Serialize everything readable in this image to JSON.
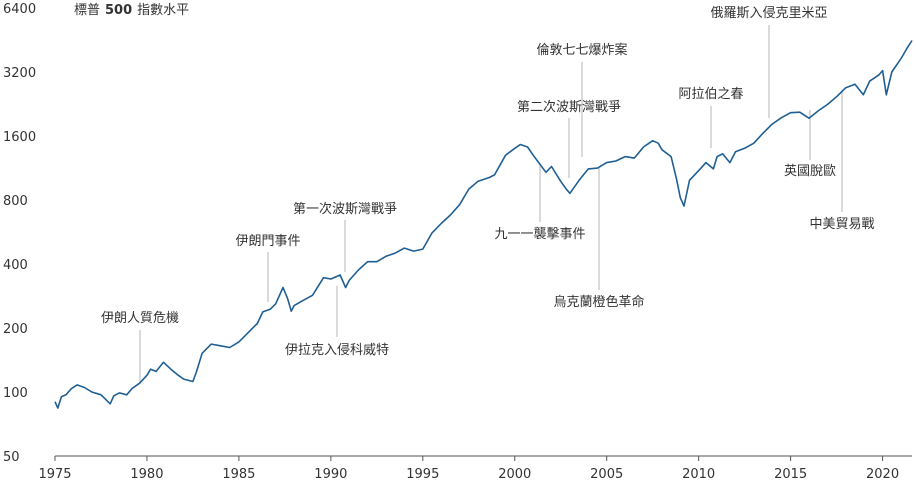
{
  "chart_data": {
    "type": "line",
    "title_prefix": "標普",
    "title_number": "500",
    "title_suffix": "指數水平",
    "y_scale": "log2",
    "ylim": [
      50,
      6400
    ],
    "y_ticks": [
      "6400",
      "3200",
      "1600",
      "800",
      "400",
      "200",
      "100",
      "50"
    ],
    "xlim": [
      1975,
      2021.6
    ],
    "x_ticks": [
      "1975",
      "1980",
      "1985",
      "1990",
      "1995",
      "2000",
      "2005",
      "2010",
      "2015",
      "2020"
    ],
    "grid": false,
    "line_color": "#1f5f94",
    "series": [
      {
        "x": [
          1975.0,
          1975.15,
          1975.35,
          1975.6,
          1975.9,
          1976.2,
          1976.6,
          1977.0,
          1977.5,
          1978.0,
          1978.2,
          1978.5,
          1978.9,
          1979.2,
          1979.6,
          1980.0,
          1980.2,
          1980.5,
          1980.9,
          1981.3,
          1981.7,
          1982.0,
          1982.5,
          1982.7,
          1983.0,
          1983.5,
          1984.0,
          1984.5,
          1985.0,
          1985.5,
          1986.0,
          1986.3,
          1986.7,
          1987.0,
          1987.4,
          1987.65,
          1987.85,
          1988.0,
          1988.5,
          1989.0,
          1989.6,
          1990.0,
          1990.5,
          1990.8,
          1991.0,
          1991.5,
          1992.0,
          1992.5,
          1993.0,
          1993.5,
          1994.0,
          1994.5,
          1995.0,
          1995.5,
          1996.0,
          1996.5,
          1997.0,
          1997.5,
          1998.0,
          1998.6,
          1998.9,
          1999.5,
          2000.0,
          2000.3,
          2000.7,
          2001.0,
          2001.3,
          2001.7,
          2002.0,
          2002.5,
          2002.8,
          2003.0,
          2003.5,
          2004.0,
          2004.5,
          2005.0,
          2005.5,
          2006.0,
          2006.5,
          2007.0,
          2007.5,
          2007.8,
          2008.0,
          2008.5,
          2008.8,
          2009.0,
          2009.2,
          2009.5,
          2010.0,
          2010.4,
          2010.8,
          2011.0,
          2011.3,
          2011.7,
          2012.0,
          2012.5,
          2013.0,
          2013.5,
          2014.0,
          2014.5,
          2015.0,
          2015.5,
          2016.0,
          2016.5,
          2017.0,
          2017.5,
          2018.0,
          2018.5,
          2018.95,
          2019.3,
          2019.8,
          2020.0,
          2020.2,
          2020.5,
          2021.0,
          2021.3,
          2021.6
        ],
        "y": [
          90,
          84,
          95,
          97,
          104,
          108,
          105,
          100,
          97,
          88,
          96,
          99,
          97,
          104,
          110,
          120,
          128,
          125,
          138,
          128,
          120,
          115,
          112,
          125,
          152,
          168,
          165,
          162,
          172,
          190,
          210,
          238,
          245,
          260,
          310,
          275,
          240,
          255,
          270,
          285,
          345,
          340,
          355,
          310,
          335,
          375,
          410,
          410,
          435,
          450,
          475,
          460,
          470,
          560,
          620,
          680,
          760,
          900,
          980,
          1020,
          1050,
          1300,
          1400,
          1460,
          1420,
          1300,
          1200,
          1080,
          1150,
          980,
          900,
          860,
          990,
          1120,
          1130,
          1200,
          1220,
          1280,
          1260,
          1420,
          1520,
          1480,
          1380,
          1280,
          1000,
          820,
          750,
          990,
          1100,
          1200,
          1120,
          1280,
          1320,
          1200,
          1350,
          1400,
          1480,
          1650,
          1820,
          1950,
          2060,
          2070,
          1940,
          2100,
          2250,
          2450,
          2700,
          2800,
          2500,
          2900,
          3100,
          3250,
          2500,
          3200,
          3700,
          4100,
          4500
        ]
      }
    ],
    "annotations": [
      {
        "label": "伊朗人質危機"
      },
      {
        "label": "伊朗門事件"
      },
      {
        "label": "第一次波斯灣戰爭"
      },
      {
        "label": "伊拉克入侵科威特"
      },
      {
        "label": "第二次波斯灣戰爭"
      },
      {
        "label": "九一一襲擊事件"
      },
      {
        "label": "倫敦七七爆炸案"
      },
      {
        "label": "烏克蘭橙色革命"
      },
      {
        "label": "阿拉伯之春"
      },
      {
        "label": "俄羅斯入侵克里米亞"
      },
      {
        "label": "英國脫歐"
      },
      {
        "label": "中美貿易戰"
      }
    ]
  }
}
